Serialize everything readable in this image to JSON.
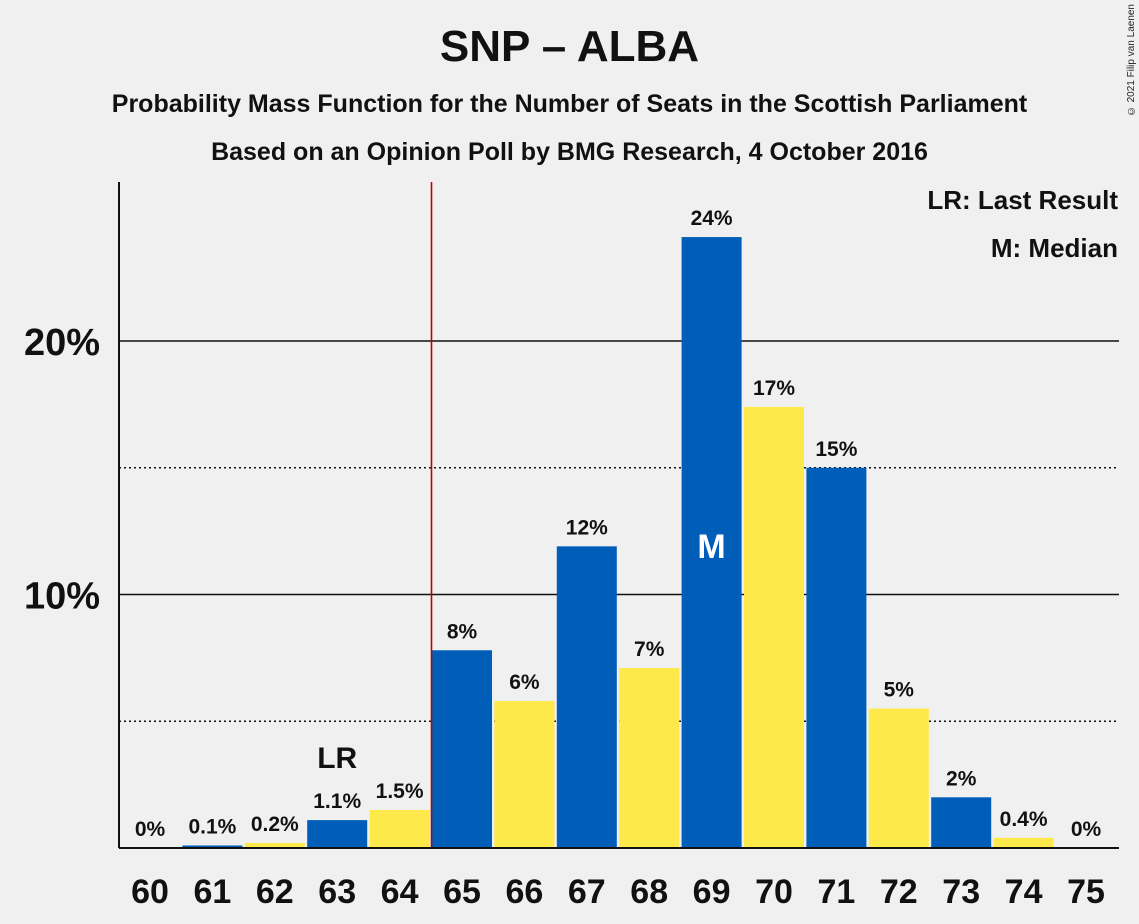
{
  "title": "SNP – ALBA",
  "subtitle1": "Probability Mass Function for the Number of Seats in the Scottish Parliament",
  "subtitle2": "Based on an Opinion Poll by BMG Research, 4 October 2016",
  "copyright": "© 2021 Filip van Laenen",
  "legend": {
    "last_result": "LR: Last Result",
    "median": "M: Median"
  },
  "colors": {
    "blue": "#005eb8",
    "yellow": "#fdea4a",
    "last_result_line": "#c00000",
    "background": "#f0f0f0"
  },
  "chart_data": {
    "type": "bar",
    "categories": [
      "60",
      "61",
      "62",
      "63",
      "64",
      "65",
      "66",
      "67",
      "68",
      "69",
      "70",
      "71",
      "72",
      "73",
      "74",
      "75"
    ],
    "values": [
      0,
      0.1,
      0.2,
      1.1,
      1.5,
      7.8,
      5.8,
      11.9,
      7.1,
      24.1,
      17.4,
      15.0,
      5.5,
      2.0,
      0.4,
      0
    ],
    "data_labels": [
      "0%",
      "0.1%",
      "0.2%",
      "1.1%",
      "1.5%",
      "8%",
      "6%",
      "12%",
      "7%",
      "24%",
      "17%",
      "15%",
      "5%",
      "2%",
      "0.4%",
      "0%"
    ],
    "bar_colors": [
      "blue",
      "blue",
      "yellow",
      "blue",
      "yellow",
      "blue",
      "yellow",
      "blue",
      "yellow",
      "blue",
      "yellow",
      "blue",
      "yellow",
      "blue",
      "yellow",
      "blue"
    ],
    "ylim": [
      0,
      26
    ],
    "y_ticks": [
      {
        "value": 10,
        "label": "10%"
      },
      {
        "value": 20,
        "label": "20%"
      }
    ],
    "minor_gridlines": [
      5,
      15
    ],
    "last_result": {
      "seat": "64.5",
      "label_seat": "63",
      "label": "LR"
    },
    "median": {
      "seat": "69",
      "label": "M"
    },
    "legend_position": "top-right",
    "xlabel": "",
    "ylabel": ""
  }
}
